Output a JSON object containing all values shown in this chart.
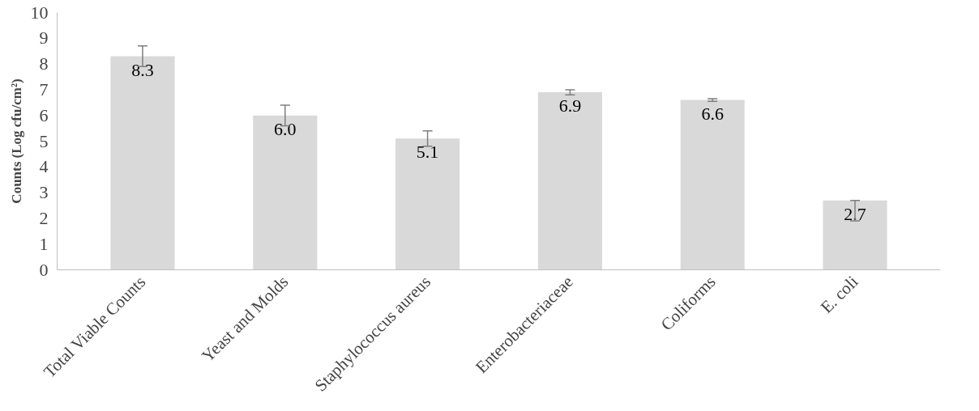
{
  "chart_data": {
    "type": "bar",
    "ylabel": "Counts (Log cfu/cm²)",
    "categories": [
      "Total Viable Counts",
      "Yeast and Molds",
      "Staphylococcus aureus",
      "Enterobacteriaceae",
      "Coliforms",
      "E. coli"
    ],
    "values": [
      8.3,
      6.0,
      5.1,
      6.9,
      6.6,
      2.7
    ],
    "value_labels": [
      "8.3",
      "6.0",
      "5.1",
      "6.9",
      "6.6",
      "2.7"
    ],
    "errors": [
      0.4,
      0.4,
      0.3,
      0.1,
      0.05,
      [
        1.9,
        2.7
      ]
    ],
    "color": "#d9d9d9",
    "ylim": [
      0,
      10
    ],
    "yticks": [
      0,
      1,
      2,
      3,
      4,
      5,
      6,
      7,
      8,
      9,
      10
    ],
    "grid": false
  }
}
